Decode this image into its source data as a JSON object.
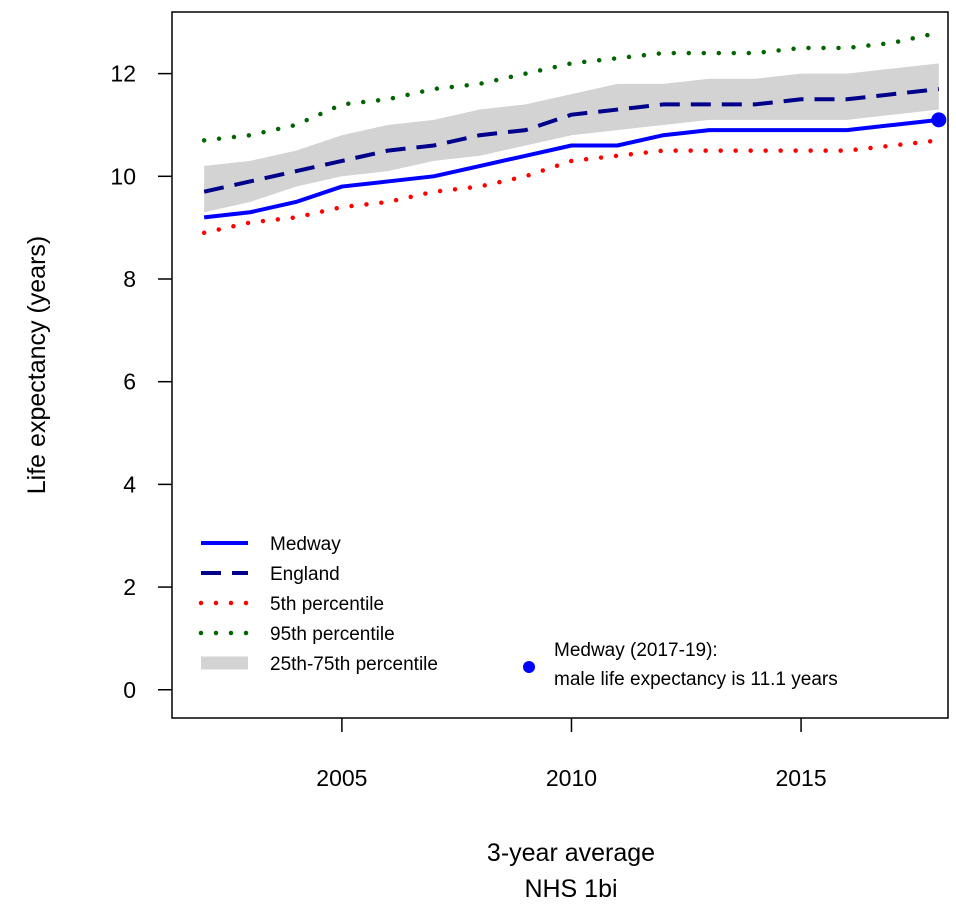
{
  "chart_data": {
    "type": "line",
    "xlabel": "3-year average",
    "caption": "NHS 1bi",
    "ylabel": "Life expectancy (years)",
    "xlim": [
      2001.3,
      2018.2
    ],
    "ylim": [
      -0.55,
      13.2
    ],
    "x_ticks": [
      2005,
      2010,
      2015
    ],
    "y_ticks": [
      0,
      2,
      4,
      6,
      8,
      10,
      12
    ],
    "grid": false,
    "legend_position": "bottom-left",
    "x": [
      2002,
      2003,
      2004,
      2005,
      2006,
      2007,
      2008,
      2009,
      2010,
      2011,
      2012,
      2013,
      2014,
      2015,
      2016,
      2017,
      2018
    ],
    "band": {
      "name": "25th-75th percentile",
      "color": "#d3d3d3",
      "lower": [
        9.3,
        9.5,
        9.8,
        10.0,
        10.1,
        10.3,
        10.4,
        10.6,
        10.8,
        10.9,
        11.0,
        11.1,
        11.1,
        11.1,
        11.1,
        11.2,
        11.3
      ],
      "upper": [
        10.2,
        10.3,
        10.5,
        10.8,
        11.0,
        11.1,
        11.3,
        11.4,
        11.6,
        11.8,
        11.8,
        11.9,
        11.9,
        12.0,
        12.0,
        12.1,
        12.2
      ]
    },
    "series": [
      {
        "name": "Medway",
        "style": "solid",
        "color": "#0000ff",
        "values": [
          9.2,
          9.3,
          9.5,
          9.8,
          9.9,
          10.0,
          10.2,
          10.4,
          10.6,
          10.6,
          10.8,
          10.9,
          10.9,
          10.9,
          10.9,
          11.0,
          11.1
        ]
      },
      {
        "name": "England",
        "style": "dashed",
        "color": "#00008b",
        "values": [
          9.7,
          9.9,
          10.1,
          10.3,
          10.5,
          10.6,
          10.8,
          10.9,
          11.2,
          11.3,
          11.4,
          11.4,
          11.4,
          11.5,
          11.5,
          11.6,
          11.7
        ]
      },
      {
        "name": "5th percentile",
        "style": "dotted",
        "color": "#ff0000",
        "values": [
          8.9,
          9.1,
          9.2,
          9.4,
          9.5,
          9.7,
          9.8,
          10.0,
          10.3,
          10.4,
          10.5,
          10.5,
          10.5,
          10.5,
          10.5,
          10.6,
          10.7
        ]
      },
      {
        "name": "95th percentile",
        "style": "dotted",
        "color": "#006400",
        "values": [
          10.7,
          10.8,
          11.0,
          11.4,
          11.5,
          11.7,
          11.8,
          12.0,
          12.2,
          12.3,
          12.4,
          12.4,
          12.4,
          12.5,
          12.5,
          12.6,
          12.8
        ]
      }
    ],
    "highlight": {
      "x": 2018,
      "y": 11.1,
      "color": "#0000ff"
    },
    "annotation": {
      "line1": "Medway (2017-19):",
      "line2": "male life expectancy is 11.1 years"
    }
  }
}
